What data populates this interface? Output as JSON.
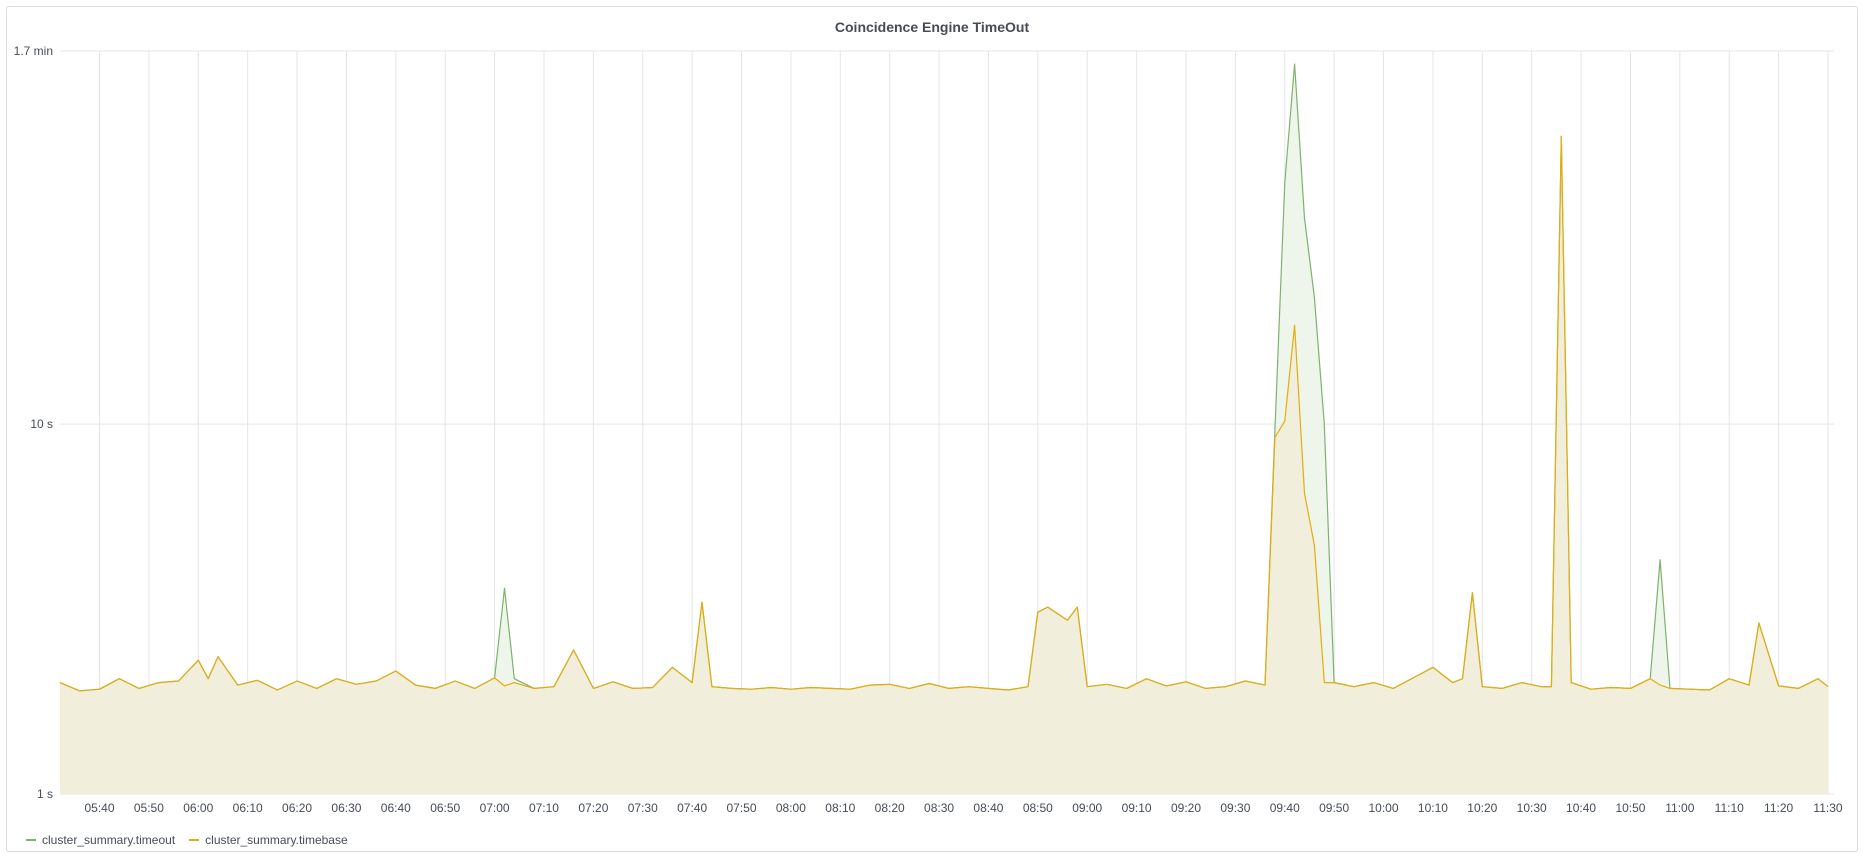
{
  "panel": {
    "title": "Coincidence Engine TimeOut"
  },
  "colors": {
    "timeout": "#7eb26d",
    "timebase": "#e5ac0e",
    "timeout_fill": "#eef5ea",
    "timebase_fill": "#f1eed9",
    "grid": "#e4e5e8"
  },
  "legend": [
    {
      "label": "cluster_summary.timeout",
      "color": "#7eb26d"
    },
    {
      "label": "cluster_summary.timebase",
      "color": "#e5ac0e"
    }
  ],
  "chart_data": {
    "type": "area",
    "title": "Coincidence Engine TimeOut",
    "y_scale": "log10",
    "y_unit": "seconds",
    "ylim": [
      1,
      102
    ],
    "y_ticks": [
      {
        "value": 1,
        "label": "1 s"
      },
      {
        "value": 10,
        "label": "10 s"
      },
      {
        "value": 102,
        "label": "1.7 min"
      }
    ],
    "x_unit": "time HH:MM",
    "xlim": [
      "05:32",
      "11:30"
    ],
    "x_ticks": [
      "05:40",
      "05:50",
      "06:00",
      "06:10",
      "06:20",
      "06:30",
      "06:40",
      "06:50",
      "07:00",
      "07:10",
      "07:20",
      "07:30",
      "07:40",
      "07:50",
      "08:00",
      "08:10",
      "08:20",
      "08:30",
      "08:40",
      "08:50",
      "09:00",
      "09:10",
      "09:20",
      "09:30",
      "09:40",
      "09:50",
      "10:00",
      "10:10",
      "10:20",
      "10:30",
      "10:40",
      "10:50",
      "11:00",
      "11:10",
      "11:20",
      "11:30"
    ],
    "grid": true,
    "legend_position": "bottom-left",
    "series": [
      {
        "name": "cluster_summary.timeout",
        "color": "#7eb26d",
        "points": [
          [
            "05:32",
            2.0
          ],
          [
            "05:36",
            1.9
          ],
          [
            "05:40",
            1.92
          ],
          [
            "05:44",
            2.05
          ],
          [
            "05:48",
            1.93
          ],
          [
            "05:52",
            2.0
          ],
          [
            "05:56",
            2.02
          ],
          [
            "06:00",
            2.3
          ],
          [
            "06:02",
            2.05
          ],
          [
            "06:04",
            2.35
          ],
          [
            "06:08",
            1.97
          ],
          [
            "06:12",
            2.03
          ],
          [
            "06:16",
            1.91
          ],
          [
            "06:20",
            2.02
          ],
          [
            "06:24",
            1.93
          ],
          [
            "06:28",
            2.05
          ],
          [
            "06:32",
            1.98
          ],
          [
            "06:36",
            2.02
          ],
          [
            "06:40",
            2.15
          ],
          [
            "06:44",
            1.97
          ],
          [
            "06:48",
            1.93
          ],
          [
            "06:52",
            2.02
          ],
          [
            "06:56",
            1.93
          ],
          [
            "07:00",
            2.06
          ],
          [
            "07:02",
            3.6
          ],
          [
            "07:04",
            2.05
          ],
          [
            "07:08",
            1.93
          ],
          [
            "07:12",
            1.95
          ],
          [
            "07:16",
            2.45
          ],
          [
            "07:20",
            1.93
          ],
          [
            "07:24",
            2.01
          ],
          [
            "07:28",
            1.93
          ],
          [
            "07:32",
            1.94
          ],
          [
            "07:36",
            2.2
          ],
          [
            "07:40",
            2.0
          ],
          [
            "07:42",
            3.3
          ],
          [
            "07:44",
            1.95
          ],
          [
            "07:48",
            1.93
          ],
          [
            "07:52",
            1.92
          ],
          [
            "07:56",
            1.94
          ],
          [
            "08:00",
            1.92
          ],
          [
            "08:04",
            1.94
          ],
          [
            "08:08",
            1.93
          ],
          [
            "08:12",
            1.92
          ],
          [
            "08:16",
            1.97
          ],
          [
            "08:20",
            1.98
          ],
          [
            "08:24",
            1.93
          ],
          [
            "08:28",
            1.99
          ],
          [
            "08:32",
            1.93
          ],
          [
            "08:36",
            1.95
          ],
          [
            "08:40",
            1.93
          ],
          [
            "08:44",
            1.91
          ],
          [
            "08:48",
            1.95
          ],
          [
            "08:50",
            3.1
          ],
          [
            "08:52",
            3.2
          ],
          [
            "08:56",
            2.95
          ],
          [
            "08:58",
            3.2
          ],
          [
            "09:00",
            1.95
          ],
          [
            "09:04",
            1.98
          ],
          [
            "09:08",
            1.93
          ],
          [
            "09:12",
            2.05
          ],
          [
            "09:16",
            1.96
          ],
          [
            "09:20",
            2.01
          ],
          [
            "09:24",
            1.93
          ],
          [
            "09:28",
            1.95
          ],
          [
            "09:32",
            2.02
          ],
          [
            "09:36",
            1.97
          ],
          [
            "09:38",
            9.6
          ],
          [
            "09:40",
            45.0
          ],
          [
            "09:42",
            94.0
          ],
          [
            "09:44",
            36.0
          ],
          [
            "09:46",
            22.0
          ],
          [
            "09:48",
            10.0
          ],
          [
            "09:50",
            2.0
          ],
          [
            "09:54",
            1.95
          ],
          [
            "09:58",
            2.0
          ],
          [
            "10:02",
            1.93
          ],
          [
            "10:06",
            2.06
          ],
          [
            "10:10",
            2.2
          ],
          [
            "10:14",
            2.0
          ],
          [
            "10:16",
            2.05
          ],
          [
            "10:18",
            3.5
          ],
          [
            "10:20",
            1.95
          ],
          [
            "10:24",
            1.93
          ],
          [
            "10:28",
            2.0
          ],
          [
            "10:32",
            1.95
          ],
          [
            "10:34",
            1.95
          ],
          [
            "10:36",
            60.0
          ],
          [
            "10:38",
            2.0
          ],
          [
            "10:42",
            1.92
          ],
          [
            "10:46",
            1.94
          ],
          [
            "10:50",
            1.93
          ],
          [
            "10:54",
            2.05
          ],
          [
            "10:56",
            4.3
          ],
          [
            "10:58",
            1.93
          ],
          [
            "11:02",
            1.92
          ],
          [
            "11:06",
            1.91
          ],
          [
            "11:10",
            2.05
          ],
          [
            "11:14",
            1.97
          ],
          [
            "11:16",
            2.9
          ],
          [
            "11:20",
            1.96
          ],
          [
            "11:24",
            1.93
          ],
          [
            "11:28",
            2.05
          ],
          [
            "11:30",
            1.95
          ]
        ]
      },
      {
        "name": "cluster_summary.timebase",
        "color": "#e5ac0e",
        "points": [
          [
            "05:32",
            2.0
          ],
          [
            "05:36",
            1.9
          ],
          [
            "05:40",
            1.92
          ],
          [
            "05:44",
            2.05
          ],
          [
            "05:48",
            1.93
          ],
          [
            "05:52",
            2.0
          ],
          [
            "05:56",
            2.02
          ],
          [
            "06:00",
            2.3
          ],
          [
            "06:02",
            2.05
          ],
          [
            "06:04",
            2.35
          ],
          [
            "06:08",
            1.97
          ],
          [
            "06:12",
            2.03
          ],
          [
            "06:16",
            1.91
          ],
          [
            "06:20",
            2.02
          ],
          [
            "06:24",
            1.93
          ],
          [
            "06:28",
            2.05
          ],
          [
            "06:32",
            1.98
          ],
          [
            "06:36",
            2.02
          ],
          [
            "06:40",
            2.15
          ],
          [
            "06:44",
            1.97
          ],
          [
            "06:48",
            1.93
          ],
          [
            "06:52",
            2.02
          ],
          [
            "06:56",
            1.93
          ],
          [
            "07:00",
            2.06
          ],
          [
            "07:02",
            1.96
          ],
          [
            "07:04",
            2.0
          ],
          [
            "07:08",
            1.93
          ],
          [
            "07:12",
            1.95
          ],
          [
            "07:16",
            2.45
          ],
          [
            "07:20",
            1.93
          ],
          [
            "07:24",
            2.01
          ],
          [
            "07:28",
            1.93
          ],
          [
            "07:32",
            1.94
          ],
          [
            "07:36",
            2.2
          ],
          [
            "07:40",
            2.0
          ],
          [
            "07:42",
            3.3
          ],
          [
            "07:44",
            1.95
          ],
          [
            "07:48",
            1.93
          ],
          [
            "07:52",
            1.92
          ],
          [
            "07:56",
            1.94
          ],
          [
            "08:00",
            1.92
          ],
          [
            "08:04",
            1.94
          ],
          [
            "08:08",
            1.93
          ],
          [
            "08:12",
            1.92
          ],
          [
            "08:16",
            1.97
          ],
          [
            "08:20",
            1.98
          ],
          [
            "08:24",
            1.93
          ],
          [
            "08:28",
            1.99
          ],
          [
            "08:32",
            1.93
          ],
          [
            "08:36",
            1.95
          ],
          [
            "08:40",
            1.93
          ],
          [
            "08:44",
            1.91
          ],
          [
            "08:48",
            1.95
          ],
          [
            "08:50",
            3.1
          ],
          [
            "08:52",
            3.2
          ],
          [
            "08:56",
            2.95
          ],
          [
            "08:58",
            3.2
          ],
          [
            "09:00",
            1.95
          ],
          [
            "09:04",
            1.98
          ],
          [
            "09:08",
            1.93
          ],
          [
            "09:12",
            2.05
          ],
          [
            "09:16",
            1.96
          ],
          [
            "09:20",
            2.01
          ],
          [
            "09:24",
            1.93
          ],
          [
            "09:28",
            1.95
          ],
          [
            "09:32",
            2.02
          ],
          [
            "09:36",
            1.97
          ],
          [
            "09:38",
            9.2
          ],
          [
            "09:40",
            10.2
          ],
          [
            "09:42",
            18.5
          ],
          [
            "09:44",
            6.5
          ],
          [
            "09:46",
            4.7
          ],
          [
            "09:48",
            2.0
          ],
          [
            "09:50",
            2.0
          ],
          [
            "09:54",
            1.95
          ],
          [
            "09:58",
            2.0
          ],
          [
            "10:02",
            1.93
          ],
          [
            "10:06",
            2.06
          ],
          [
            "10:10",
            2.2
          ],
          [
            "10:14",
            2.0
          ],
          [
            "10:16",
            2.05
          ],
          [
            "10:18",
            3.5
          ],
          [
            "10:20",
            1.95
          ],
          [
            "10:24",
            1.93
          ],
          [
            "10:28",
            2.0
          ],
          [
            "10:32",
            1.95
          ],
          [
            "10:34",
            1.95
          ],
          [
            "10:36",
            60.0
          ],
          [
            "10:38",
            2.0
          ],
          [
            "10:42",
            1.92
          ],
          [
            "10:46",
            1.94
          ],
          [
            "10:50",
            1.93
          ],
          [
            "10:54",
            2.05
          ],
          [
            "10:56",
            1.97
          ],
          [
            "10:58",
            1.93
          ],
          [
            "11:02",
            1.92
          ],
          [
            "11:06",
            1.91
          ],
          [
            "11:10",
            2.05
          ],
          [
            "11:14",
            1.97
          ],
          [
            "11:16",
            2.9
          ],
          [
            "11:20",
            1.96
          ],
          [
            "11:24",
            1.93
          ],
          [
            "11:28",
            2.05
          ],
          [
            "11:30",
            1.95
          ]
        ]
      }
    ]
  }
}
